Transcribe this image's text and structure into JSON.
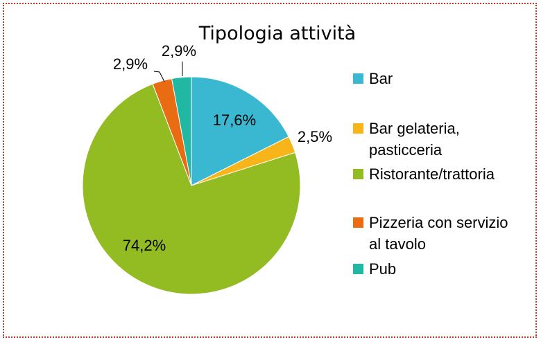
{
  "chart_data": {
    "type": "pie",
    "title": "Tipologia attività",
    "slices": [
      {
        "label": "Bar",
        "legend_lines": [
          "Bar"
        ],
        "value": 17.6,
        "display": "17,6%",
        "color": "#3BB8D1"
      },
      {
        "label": "Bar gelateria, pasticceria",
        "legend_lines": [
          "Bar gelateria,",
          "pasticceria"
        ],
        "value": 2.5,
        "display": "2,5%",
        "color": "#F7B519"
      },
      {
        "label": "Ristorante/trattoria",
        "legend_lines": [
          "Ristorante/trattoria"
        ],
        "value": 74.2,
        "display": "74,2%",
        "color": "#93BC22"
      },
      {
        "label": "Pizzeria con servizio al tavolo",
        "legend_lines": [
          "Pizzeria con servizio",
          "al tavolo"
        ],
        "value": 2.9,
        "display": "2,9%",
        "color": "#E96B12"
      },
      {
        "label": "Pub",
        "legend_lines": [
          "Pub"
        ],
        "value": 2.9,
        "display": "2,9%",
        "color": "#20B7A3"
      }
    ],
    "start_angle_deg": 0,
    "direction": "clockwise",
    "legend_position": "right"
  }
}
